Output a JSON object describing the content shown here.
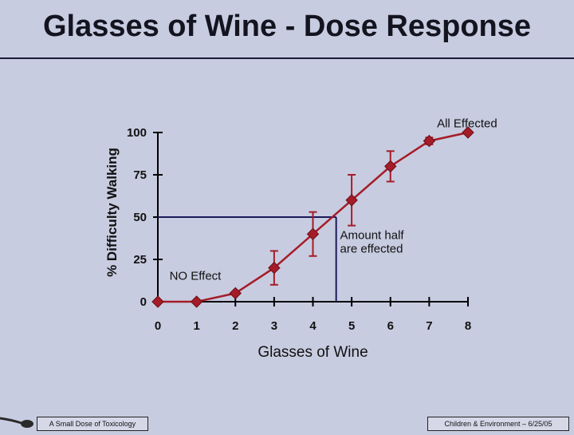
{
  "title": "Glasses of Wine - Dose Response",
  "footer": {
    "left": "A Small Dose of Toxicology",
    "right": "Children & Environment – 6/25/05"
  },
  "logo_icon": "spoon-icon",
  "colors": {
    "background": "#c8cce0",
    "plot_area": "#c8cce0",
    "series": "#a51c28",
    "axis": "#000000",
    "reference_lines": "#1a1a5a"
  },
  "chart_data": {
    "type": "line",
    "title": "Glasses of Wine - Dose Response",
    "xlabel": "Glasses of Wine",
    "ylabel": "% Difficulty Walking",
    "xlim": [
      0,
      8
    ],
    "ylim": [
      0,
      100
    ],
    "x_ticks": [
      "0",
      "1",
      "2",
      "3",
      "4",
      "5",
      "6",
      "7",
      "8"
    ],
    "y_ticks": [
      "0",
      "25",
      "50",
      "75",
      "100"
    ],
    "grid": false,
    "series": [
      {
        "x": [
          0,
          1,
          2,
          3,
          4,
          5,
          6,
          7,
          8
        ],
        "y": [
          0,
          0,
          5,
          20,
          40,
          60,
          80,
          95,
          100
        ],
        "error_low": [
          null,
          null,
          null,
          30,
          53,
          75,
          89,
          97,
          null
        ],
        "error_high": [
          null,
          null,
          null,
          10,
          27,
          45,
          71,
          93,
          null
        ]
      }
    ],
    "reference_lines": {
      "y": 50,
      "x": 4.6
    },
    "annotations": [
      {
        "text": "All Effected",
        "x": 7.2,
        "y": 103
      },
      {
        "text": "Amount half",
        "x": 4.7,
        "y": 37
      },
      {
        "text": "are effected",
        "x": 4.7,
        "y": 29
      },
      {
        "text": "NO Effect",
        "x": 0.3,
        "y": 13
      }
    ]
  }
}
